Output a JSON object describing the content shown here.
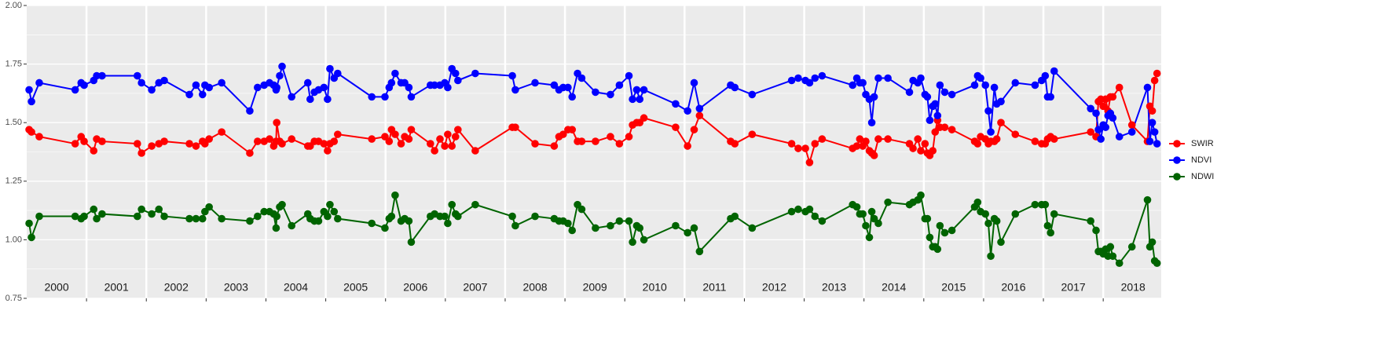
{
  "chart_data": {
    "type": "line",
    "x": [
      2000.04,
      2000.08,
      2000.21,
      2000.81,
      2000.91,
      2000.96,
      2001.12,
      2001.17,
      2001.26,
      2001.85,
      2001.92,
      2002.09,
      2002.21,
      2002.3,
      2002.72,
      2002.83,
      2002.94,
      2002.98,
      2003.05,
      2003.26,
      2003.73,
      2003.86,
      2003.97,
      2004.06,
      2004.13,
      2004.17,
      2004.18,
      2004.23,
      2004.27,
      2004.43,
      2004.7,
      2004.74,
      2004.81,
      2004.88,
      2004.97,
      2005.03,
      2005.07,
      2005.14,
      2005.2,
      2005.77,
      2005.99,
      2006.06,
      2006.1,
      2006.16,
      2006.26,
      2006.32,
      2006.39,
      2006.43,
      2006.75,
      2006.82,
      2006.91,
      2006.99,
      2007.04,
      2007.11,
      2007.17,
      2007.21,
      2007.5,
      2008.12,
      2008.17,
      2008.5,
      2008.82,
      2008.9,
      2008.97,
      2009.05,
      2009.12,
      2009.21,
      2009.28,
      2009.51,
      2009.76,
      2009.91,
      2010.07,
      2010.13,
      2010.2,
      2010.25,
      2010.32,
      2010.85,
      2011.05,
      2011.16,
      2011.25,
      2011.77,
      2011.84,
      2012.13,
      2012.79,
      2012.9,
      2013.02,
      2013.09,
      2013.18,
      2013.3,
      2013.81,
      2013.88,
      2013.93,
      2013.98,
      2014.03,
      2014.09,
      2014.13,
      2014.17,
      2014.24,
      2014.4,
      2014.76,
      2014.82,
      2014.9,
      2014.95,
      2015.02,
      2015.06,
      2015.1,
      2015.15,
      2015.19,
      2015.23,
      2015.27,
      2015.35,
      2015.47,
      2015.85,
      2015.9,
      2015.95,
      2016.03,
      2016.08,
      2016.12,
      2016.18,
      2016.22,
      2016.29,
      2016.53,
      2016.86,
      2016.97,
      2017.03,
      2017.07,
      2017.12,
      2017.18,
      2017.79,
      2017.88,
      2017.92,
      2017.96,
      2018.0,
      2018.04,
      2018.08,
      2018.12,
      2018.16,
      2018.27,
      2018.48,
      2018.74,
      2018.78,
      2018.82,
      2018.86,
      2018.9
    ],
    "series": [
      {
        "name": "SWIR",
        "color": "#ff0000",
        "values": [
          1.47,
          1.46,
          1.44,
          1.41,
          1.44,
          1.42,
          1.38,
          1.43,
          1.42,
          1.41,
          1.37,
          1.4,
          1.41,
          1.42,
          1.41,
          1.4,
          1.42,
          1.41,
          1.43,
          1.46,
          1.37,
          1.42,
          1.42,
          1.43,
          1.4,
          1.42,
          1.5,
          1.42,
          1.41,
          1.43,
          1.4,
          1.4,
          1.42,
          1.42,
          1.41,
          1.38,
          1.41,
          1.42,
          1.45,
          1.43,
          1.44,
          1.42,
          1.47,
          1.45,
          1.41,
          1.44,
          1.43,
          1.47,
          1.41,
          1.38,
          1.43,
          1.4,
          1.45,
          1.4,
          1.44,
          1.47,
          1.38,
          1.48,
          1.48,
          1.41,
          1.4,
          1.44,
          1.45,
          1.47,
          1.47,
          1.42,
          1.42,
          1.42,
          1.44,
          1.41,
          1.44,
          1.49,
          1.5,
          1.5,
          1.52,
          1.48,
          1.4,
          1.47,
          1.53,
          1.42,
          1.41,
          1.45,
          1.41,
          1.39,
          1.39,
          1.33,
          1.41,
          1.43,
          1.39,
          1.4,
          1.43,
          1.4,
          1.42,
          1.38,
          1.37,
          1.36,
          1.43,
          1.43,
          1.41,
          1.39,
          1.43,
          1.38,
          1.41,
          1.37,
          1.36,
          1.38,
          1.46,
          1.51,
          1.48,
          1.48,
          1.47,
          1.42,
          1.41,
          1.44,
          1.43,
          1.41,
          1.42,
          1.42,
          1.43,
          1.5,
          1.45,
          1.42,
          1.41,
          1.41,
          1.43,
          1.44,
          1.43,
          1.46,
          1.44,
          1.59,
          1.6,
          1.57,
          1.6,
          1.55,
          1.61,
          1.61,
          1.65,
          1.49,
          1.42,
          1.57,
          1.55,
          1.68,
          1.71
        ]
      },
      {
        "name": "NDVI",
        "color": "#0000ff",
        "values": [
          1.64,
          1.59,
          1.67,
          1.64,
          1.67,
          1.66,
          1.68,
          1.7,
          1.7,
          1.7,
          1.67,
          1.64,
          1.67,
          1.68,
          1.62,
          1.66,
          1.62,
          1.66,
          1.65,
          1.67,
          1.55,
          1.65,
          1.66,
          1.67,
          1.66,
          1.64,
          1.65,
          1.7,
          1.74,
          1.61,
          1.67,
          1.6,
          1.63,
          1.64,
          1.65,
          1.6,
          1.73,
          1.69,
          1.71,
          1.61,
          1.61,
          1.65,
          1.67,
          1.71,
          1.67,
          1.67,
          1.65,
          1.61,
          1.66,
          1.66,
          1.66,
          1.67,
          1.65,
          1.73,
          1.71,
          1.68,
          1.71,
          1.7,
          1.64,
          1.67,
          1.66,
          1.64,
          1.65,
          1.65,
          1.61,
          1.71,
          1.69,
          1.63,
          1.62,
          1.66,
          1.7,
          1.6,
          1.64,
          1.6,
          1.64,
          1.58,
          1.55,
          1.67,
          1.56,
          1.66,
          1.65,
          1.62,
          1.68,
          1.69,
          1.68,
          1.67,
          1.69,
          1.7,
          1.66,
          1.69,
          1.67,
          1.67,
          1.62,
          1.6,
          1.5,
          1.61,
          1.69,
          1.69,
          1.63,
          1.68,
          1.67,
          1.69,
          1.62,
          1.61,
          1.51,
          1.57,
          1.58,
          1.53,
          1.66,
          1.63,
          1.62,
          1.66,
          1.7,
          1.69,
          1.66,
          1.55,
          1.46,
          1.65,
          1.58,
          1.59,
          1.67,
          1.66,
          1.68,
          1.7,
          1.61,
          1.61,
          1.72,
          1.56,
          1.54,
          1.47,
          1.43,
          1.49,
          1.48,
          1.53,
          1.54,
          1.52,
          1.44,
          1.46,
          1.65,
          1.42,
          1.5,
          1.46,
          1.41
        ]
      },
      {
        "name": "NDWI",
        "color": "#006400",
        "values": [
          1.07,
          1.01,
          1.1,
          1.1,
          1.09,
          1.1,
          1.13,
          1.09,
          1.11,
          1.1,
          1.13,
          1.11,
          1.13,
          1.1,
          1.09,
          1.09,
          1.09,
          1.12,
          1.14,
          1.09,
          1.08,
          1.1,
          1.12,
          1.12,
          1.11,
          1.05,
          1.1,
          1.14,
          1.15,
          1.06,
          1.11,
          1.09,
          1.08,
          1.08,
          1.12,
          1.1,
          1.15,
          1.12,
          1.09,
          1.07,
          1.05,
          1.09,
          1.1,
          1.19,
          1.08,
          1.09,
          1.08,
          0.99,
          1.1,
          1.11,
          1.1,
          1.1,
          1.07,
          1.15,
          1.11,
          1.1,
          1.15,
          1.1,
          1.06,
          1.1,
          1.09,
          1.08,
          1.08,
          1.07,
          1.04,
          1.15,
          1.13,
          1.05,
          1.06,
          1.08,
          1.08,
          0.99,
          1.06,
          1.05,
          1.0,
          1.06,
          1.03,
          1.05,
          0.95,
          1.09,
          1.1,
          1.05,
          1.12,
          1.13,
          1.12,
          1.13,
          1.1,
          1.08,
          1.15,
          1.14,
          1.11,
          1.11,
          1.06,
          1.01,
          1.12,
          1.09,
          1.07,
          1.16,
          1.15,
          1.16,
          1.17,
          1.19,
          1.09,
          1.09,
          1.01,
          0.97,
          0.97,
          0.96,
          1.06,
          1.03,
          1.04,
          1.14,
          1.16,
          1.12,
          1.11,
          1.07,
          0.93,
          1.09,
          1.08,
          0.99,
          1.11,
          1.15,
          1.15,
          1.15,
          1.06,
          1.03,
          1.11,
          1.08,
          1.04,
          0.95,
          0.95,
          0.94,
          0.96,
          0.93,
          0.97,
          0.93,
          0.9,
          0.97,
          1.17,
          0.97,
          0.99,
          0.91,
          0.9
        ]
      }
    ],
    "xlim": [
      2000,
      2018.97
    ],
    "xticks": [
      {
        "value": 2000.5,
        "label": "2000"
      },
      {
        "value": 2001.5,
        "label": "2001"
      },
      {
        "value": 2002.5,
        "label": "2002"
      },
      {
        "value": 2003.5,
        "label": "2003"
      },
      {
        "value": 2004.5,
        "label": "2004"
      },
      {
        "value": 2005.5,
        "label": "2005"
      },
      {
        "value": 2006.5,
        "label": "2006"
      },
      {
        "value": 2007.5,
        "label": "2007"
      },
      {
        "value": 2008.5,
        "label": "2008"
      },
      {
        "value": 2009.5,
        "label": "2009"
      },
      {
        "value": 2010.5,
        "label": "2010"
      },
      {
        "value": 2011.5,
        "label": "2011"
      },
      {
        "value": 2012.5,
        "label": "2012"
      },
      {
        "value": 2013.5,
        "label": "2013"
      },
      {
        "value": 2014.5,
        "label": "2014"
      },
      {
        "value": 2015.5,
        "label": "2015"
      },
      {
        "value": 2016.5,
        "label": "2016"
      },
      {
        "value": 2017.5,
        "label": "2017"
      },
      {
        "value": 2018.5,
        "label": "2018"
      }
    ],
    "xgrid": [
      2001,
      2002,
      2003,
      2004,
      2005,
      2006,
      2007,
      2008,
      2009,
      2010,
      2011,
      2012,
      2013,
      2014,
      2015,
      2016,
      2017,
      2018
    ],
    "ylim": [
      0.75,
      2.0
    ],
    "yticks": [
      0.75,
      {
        "value": 1.0,
        "label": "1.00"
      },
      1.25,
      {
        "value": 1.5,
        "label": "1.50"
      },
      1.75,
      {
        "value": 2.0,
        "label": "2.00"
      }
    ],
    "yminor": [
      0.875,
      1.125,
      1.375,
      1.625,
      1.875
    ],
    "grid": true,
    "legend": "right"
  }
}
